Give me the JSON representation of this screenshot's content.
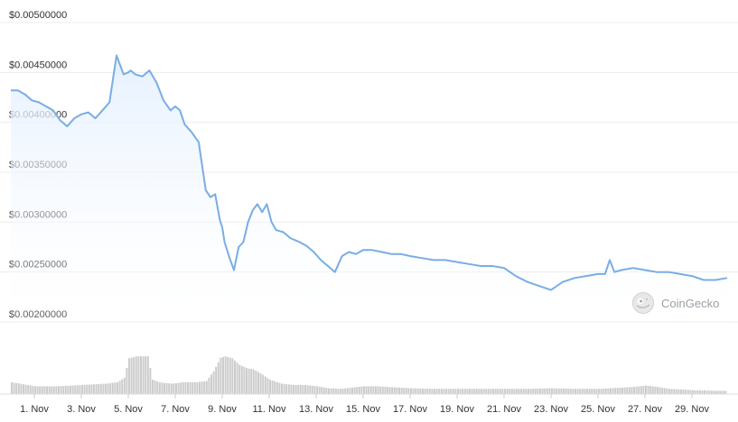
{
  "chart_data": {
    "type": "area",
    "y_tick_labels": [
      "$0.00500000",
      "$0.00450000",
      "$0.00400000",
      "$0.00350000",
      "$0.00300000",
      "$0.00250000",
      "$0.00200000"
    ],
    "y_ticks": [
      0.005,
      0.0045,
      0.004,
      0.0035,
      0.003,
      0.0025,
      0.002
    ],
    "ylim": [
      0.002,
      0.005
    ],
    "x_tick_labels": [
      "1. Nov",
      "3. Nov",
      "5. Nov",
      "7. Nov",
      "9. Nov",
      "11. Nov",
      "13. Nov",
      "15. Nov",
      "17. Nov",
      "19. Nov",
      "21. Nov",
      "23. Nov",
      "25. Nov",
      "27. Nov",
      "29. Nov"
    ],
    "x_tick_days": [
      1,
      3,
      5,
      7,
      9,
      11,
      13,
      15,
      17,
      19,
      21,
      23,
      25,
      27,
      29
    ],
    "xlim": [
      0.0,
      30.5
    ],
    "grid": true,
    "price_series": {
      "x": [
        0.0,
        0.3,
        0.6,
        0.9,
        1.2,
        1.5,
        1.8,
        2.1,
        2.4,
        2.7,
        3.0,
        3.3,
        3.6,
        3.9,
        4.2,
        4.5,
        4.8,
        5.0,
        5.1,
        5.3,
        5.6,
        5.9,
        6.2,
        6.5,
        6.8,
        7.0,
        7.2,
        7.4,
        7.7,
        8.0,
        8.3,
        8.5,
        8.7,
        8.9,
        9.0,
        9.1,
        9.3,
        9.5,
        9.7,
        9.9,
        10.1,
        10.3,
        10.5,
        10.7,
        10.9,
        11.1,
        11.3,
        11.6,
        11.9,
        12.1,
        12.3,
        12.6,
        12.9,
        13.2,
        13.5,
        13.8,
        14.1,
        14.4,
        14.7,
        15.0,
        15.4,
        15.8,
        16.2,
        16.6,
        17.0,
        17.5,
        18.0,
        18.5,
        19.0,
        19.5,
        20.0,
        20.5,
        21.0,
        21.5,
        22.0,
        22.5,
        23.0,
        23.5,
        24.0,
        24.5,
        25.0,
        25.3,
        25.5,
        25.7,
        26.0,
        26.5,
        27.0,
        27.5,
        28.0,
        28.5,
        29.0,
        29.5,
        30.0,
        30.5
      ],
      "y": [
        0.00432,
        0.00432,
        0.00428,
        0.00422,
        0.0042,
        0.00416,
        0.00412,
        0.00402,
        0.00396,
        0.00404,
        0.00408,
        0.0041,
        0.00404,
        0.00412,
        0.0042,
        0.00467,
        0.00448,
        0.0045,
        0.00452,
        0.00448,
        0.00446,
        0.00452,
        0.0044,
        0.00422,
        0.00412,
        0.00416,
        0.00412,
        0.00398,
        0.0039,
        0.0038,
        0.00332,
        0.00325,
        0.00328,
        0.00302,
        0.00295,
        0.0028,
        0.00265,
        0.00252,
        0.00275,
        0.0028,
        0.003,
        0.00312,
        0.00318,
        0.0031,
        0.00318,
        0.003,
        0.00292,
        0.0029,
        0.00284,
        0.00282,
        0.0028,
        0.00276,
        0.0027,
        0.00262,
        0.00256,
        0.0025,
        0.00266,
        0.0027,
        0.00268,
        0.00272,
        0.00272,
        0.0027,
        0.00268,
        0.00268,
        0.00266,
        0.00264,
        0.00262,
        0.00262,
        0.0026,
        0.00258,
        0.00256,
        0.00256,
        0.00254,
        0.00246,
        0.0024,
        0.00236,
        0.00232,
        0.0024,
        0.00244,
        0.00246,
        0.00248,
        0.00248,
        0.00262,
        0.0025,
        0.00252,
        0.00254,
        0.00252,
        0.0025,
        0.0025,
        0.00248,
        0.00246,
        0.00242,
        0.00242,
        0.00244
      ]
    },
    "volume_series": {
      "x": [
        0.0,
        0.5,
        1.0,
        1.5,
        2.0,
        2.5,
        3.0,
        3.5,
        4.0,
        4.5,
        4.8,
        5.0,
        5.3,
        5.8,
        6.0,
        6.3,
        6.8,
        7.3,
        7.8,
        8.3,
        8.6,
        8.9,
        9.1,
        9.4,
        9.7,
        10.0,
        10.3,
        10.6,
        11.0,
        11.5,
        12.0,
        12.5,
        13.0,
        13.5,
        14.0,
        14.5,
        15.0,
        15.5,
        16.0,
        16.5,
        17.0,
        18.0,
        19.0,
        20.0,
        21.0,
        22.0,
        23.0,
        24.0,
        25.0,
        26.0,
        26.5,
        27.0,
        27.5,
        28.0,
        29.0,
        30.0,
        30.5
      ],
      "v": [
        0.18,
        0.15,
        0.12,
        0.12,
        0.12,
        0.13,
        0.14,
        0.15,
        0.16,
        0.18,
        0.25,
        0.55,
        0.58,
        0.58,
        0.22,
        0.18,
        0.16,
        0.18,
        0.18,
        0.2,
        0.35,
        0.56,
        0.58,
        0.55,
        0.45,
        0.4,
        0.38,
        0.32,
        0.22,
        0.16,
        0.14,
        0.14,
        0.12,
        0.09,
        0.08,
        0.1,
        0.12,
        0.12,
        0.11,
        0.1,
        0.09,
        0.08,
        0.08,
        0.08,
        0.08,
        0.08,
        0.09,
        0.08,
        0.08,
        0.1,
        0.11,
        0.13,
        0.11,
        0.08,
        0.06,
        0.05,
        0.05
      ]
    },
    "line_color": "#79ade5",
    "fill_top_color": "#e3efff",
    "volume_color": "#cccccc"
  },
  "watermark": {
    "text": "CoinGecko",
    "icon": "coingecko-logo-icon"
  }
}
